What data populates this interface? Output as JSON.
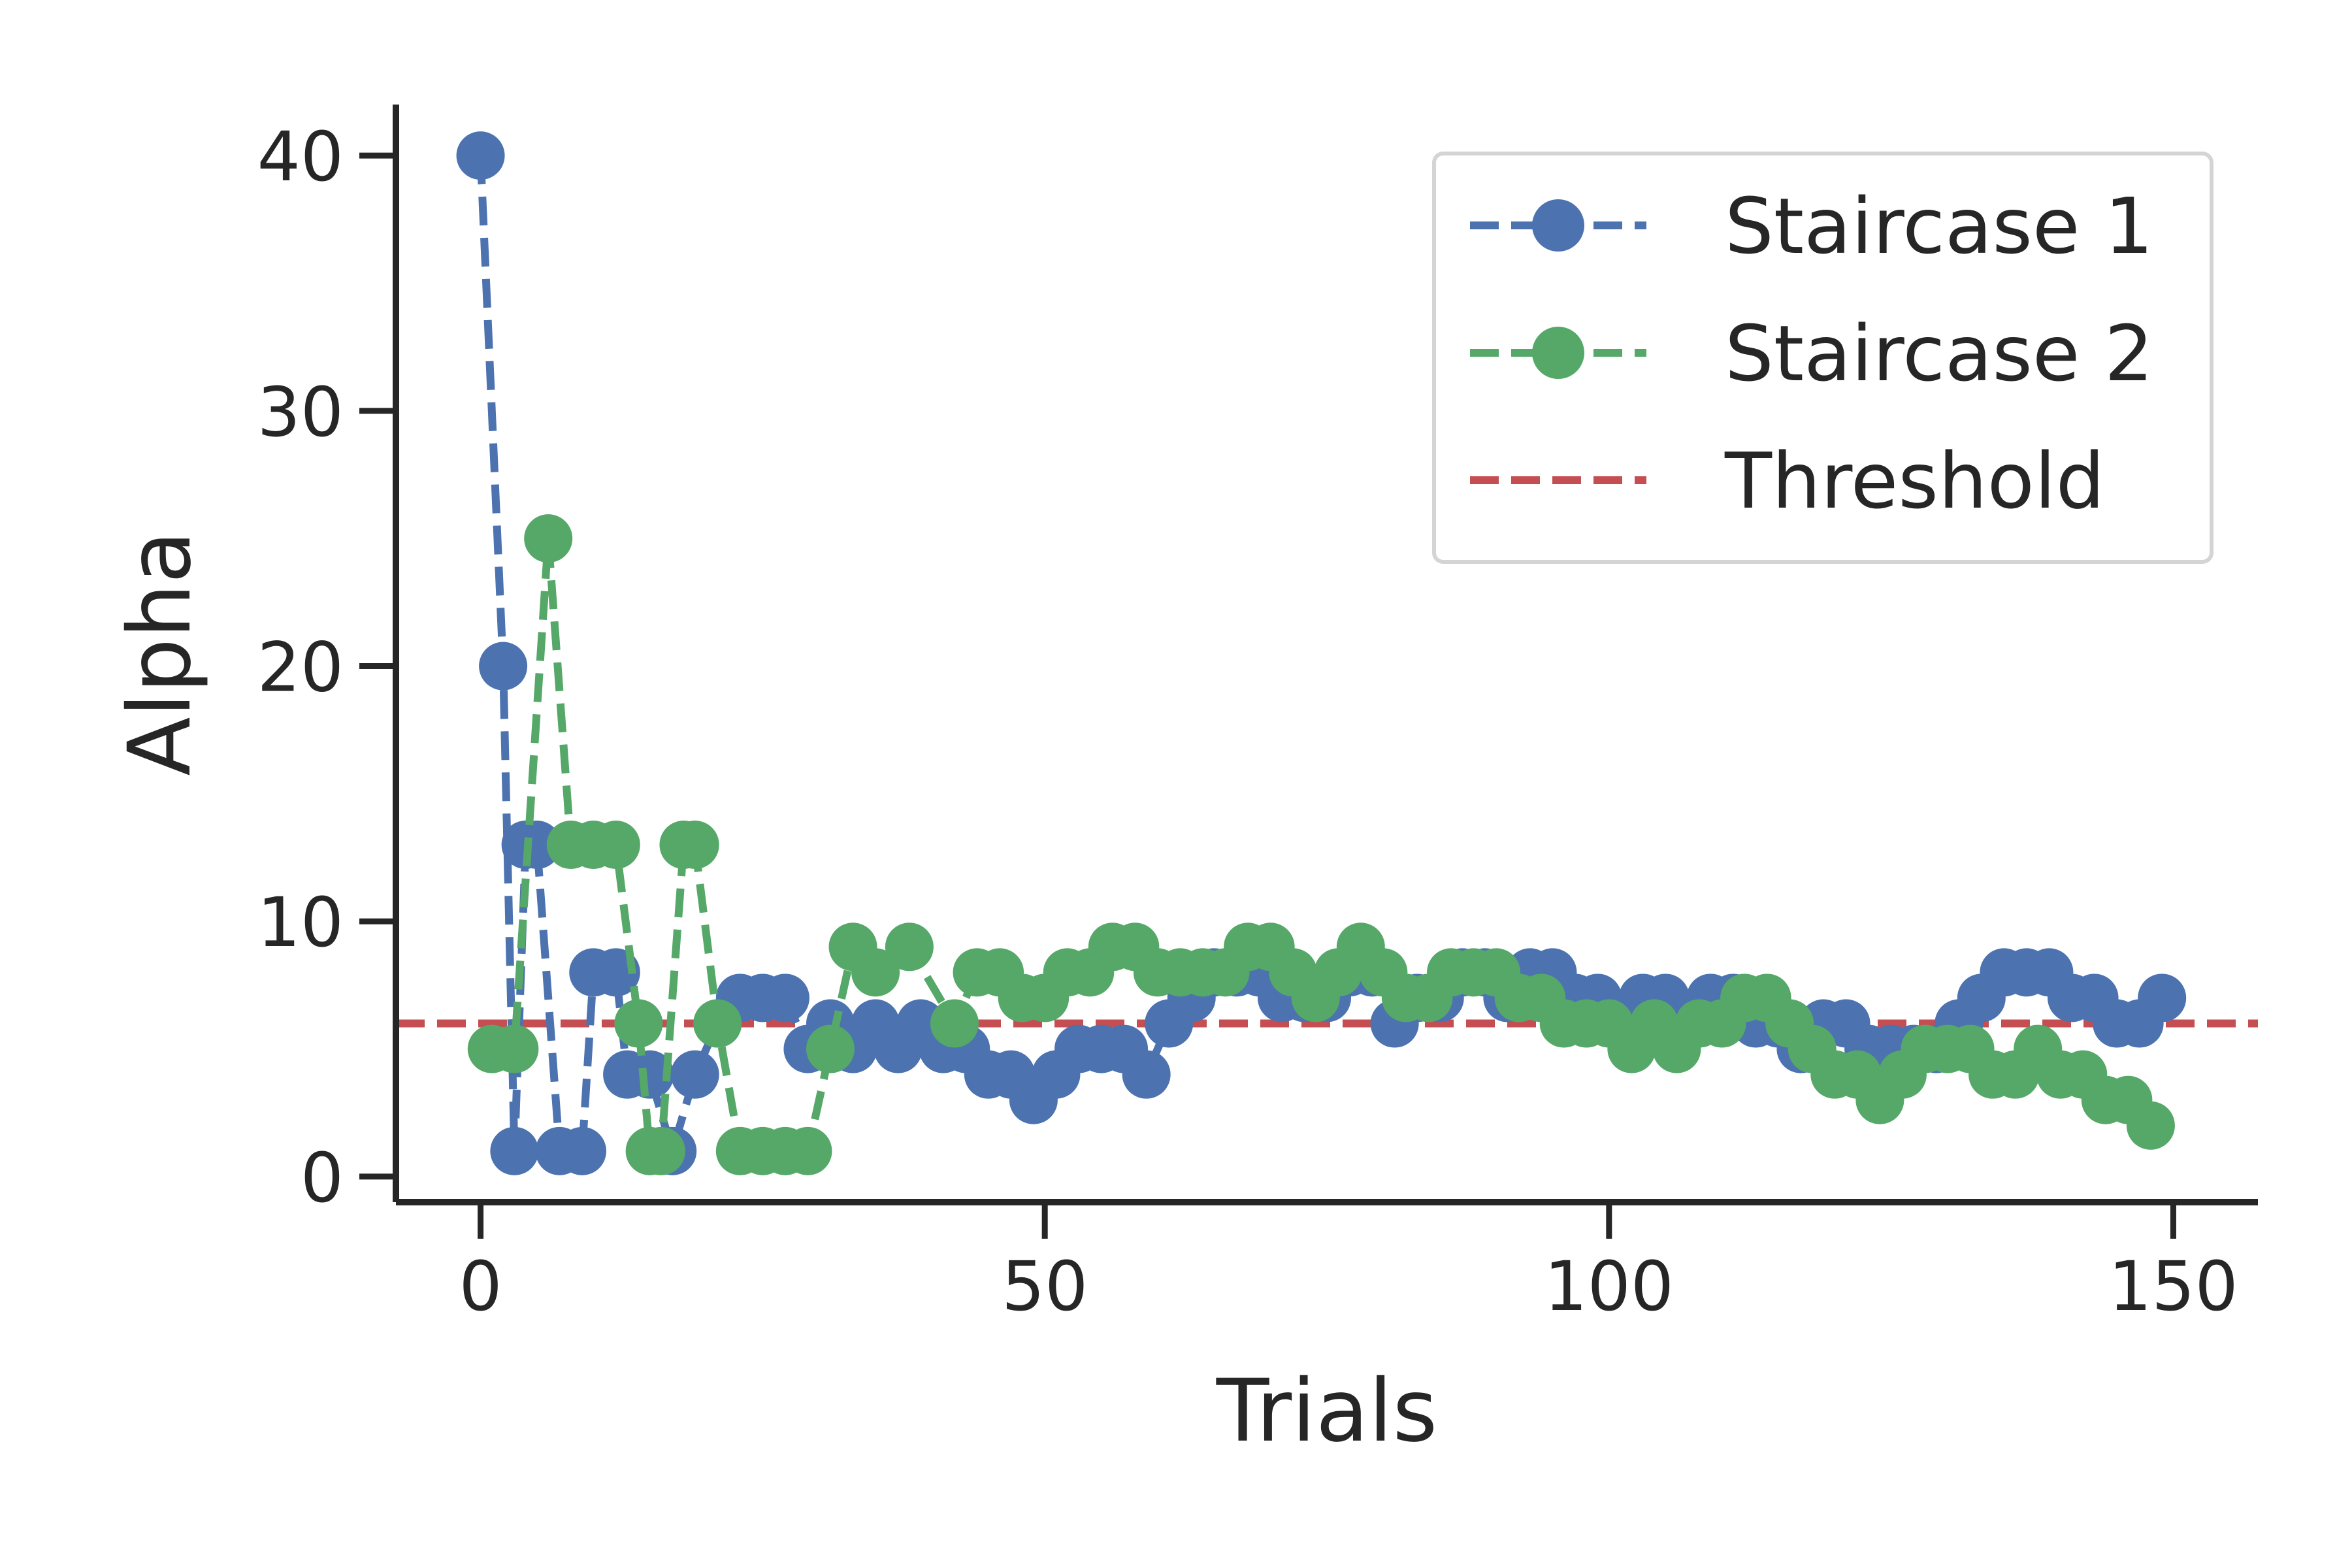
{
  "chart_data": {
    "type": "line",
    "xlabel": "Trials",
    "ylabel": "Alpha",
    "xlim": [
      -7.5,
      157.5
    ],
    "ylim": [
      -1,
      42
    ],
    "xticks": [
      0,
      50,
      100,
      150
    ],
    "yticks": [
      0,
      10,
      20,
      30,
      40
    ],
    "grid": false,
    "legend_position": "top-right",
    "series": [
      {
        "name": "Staircase 1",
        "color": "#4c72b0",
        "style": "dashed-with-markers",
        "x": [
          0,
          2,
          3,
          4,
          5,
          7,
          9,
          10,
          12,
          13,
          15,
          17,
          19,
          21,
          23,
          25,
          27,
          29,
          31,
          33,
          35,
          37,
          39,
          41,
          43,
          45,
          47,
          49,
          51,
          53,
          55,
          57,
          59,
          61,
          63,
          65,
          67,
          69,
          71,
          73,
          75,
          77,
          79,
          81,
          83,
          85,
          87,
          89,
          91,
          93,
          95,
          97,
          99,
          101,
          103,
          105,
          107,
          109,
          111,
          113,
          115,
          117,
          119,
          121,
          123,
          125,
          127,
          129,
          131,
          133,
          135,
          137,
          139,
          141,
          143,
          145,
          147,
          149
        ],
        "y": [
          40,
          20,
          1,
          13,
          13,
          1,
          1,
          8,
          8,
          4,
          4,
          1,
          4,
          6,
          7,
          7,
          7,
          5,
          6,
          5,
          6,
          5,
          6,
          5,
          5,
          4,
          4,
          3,
          4,
          5,
          5,
          5,
          4,
          6,
          7,
          8,
          8,
          8,
          7,
          7,
          7,
          8,
          8,
          6,
          7,
          7,
          8,
          8,
          7,
          8,
          8,
          7,
          7,
          6,
          7,
          7,
          6,
          7,
          7,
          6,
          6,
          5,
          6,
          6,
          5,
          5,
          5,
          5,
          6,
          7,
          8,
          8,
          8,
          7,
          7,
          6,
          6,
          7
        ]
      },
      {
        "name": "Staircase 2",
        "color": "#55a868",
        "style": "dashed-with-markers",
        "x": [
          1,
          3,
          6,
          8,
          10,
          12,
          14,
          15,
          16,
          18,
          19,
          21,
          23,
          25,
          27,
          29,
          31,
          33,
          35,
          38,
          42,
          44,
          46,
          48,
          50,
          52,
          54,
          56,
          58,
          60,
          62,
          64,
          66,
          68,
          70,
          72,
          74,
          76,
          78,
          80,
          82,
          84,
          86,
          88,
          90,
          92,
          94,
          96,
          98,
          100,
          102,
          104,
          106,
          108,
          110,
          112,
          114,
          116,
          118,
          120,
          122,
          124,
          126,
          128,
          130,
          132,
          134,
          136,
          138,
          140,
          142,
          144,
          146,
          148
        ],
        "y": [
          5,
          5,
          25,
          13,
          13,
          13,
          6,
          1,
          1,
          13,
          13,
          6,
          1,
          1,
          1,
          1,
          5,
          9,
          8,
          9,
          6,
          8,
          8,
          7,
          7,
          8,
          8,
          9,
          9,
          8,
          8,
          8,
          8,
          9,
          9,
          8,
          7,
          8,
          9,
          8,
          7,
          7,
          8,
          8,
          8,
          7,
          7,
          6,
          6,
          6,
          5,
          6,
          5,
          6,
          6,
          7,
          7,
          6,
          5,
          4,
          4,
          3,
          4,
          5,
          5,
          5,
          4,
          4,
          5,
          4,
          4,
          3,
          3,
          2
        ]
      }
    ],
    "threshold": {
      "name": "Threshold",
      "value": 6,
      "color": "#c44e52",
      "style": "dashed"
    }
  }
}
